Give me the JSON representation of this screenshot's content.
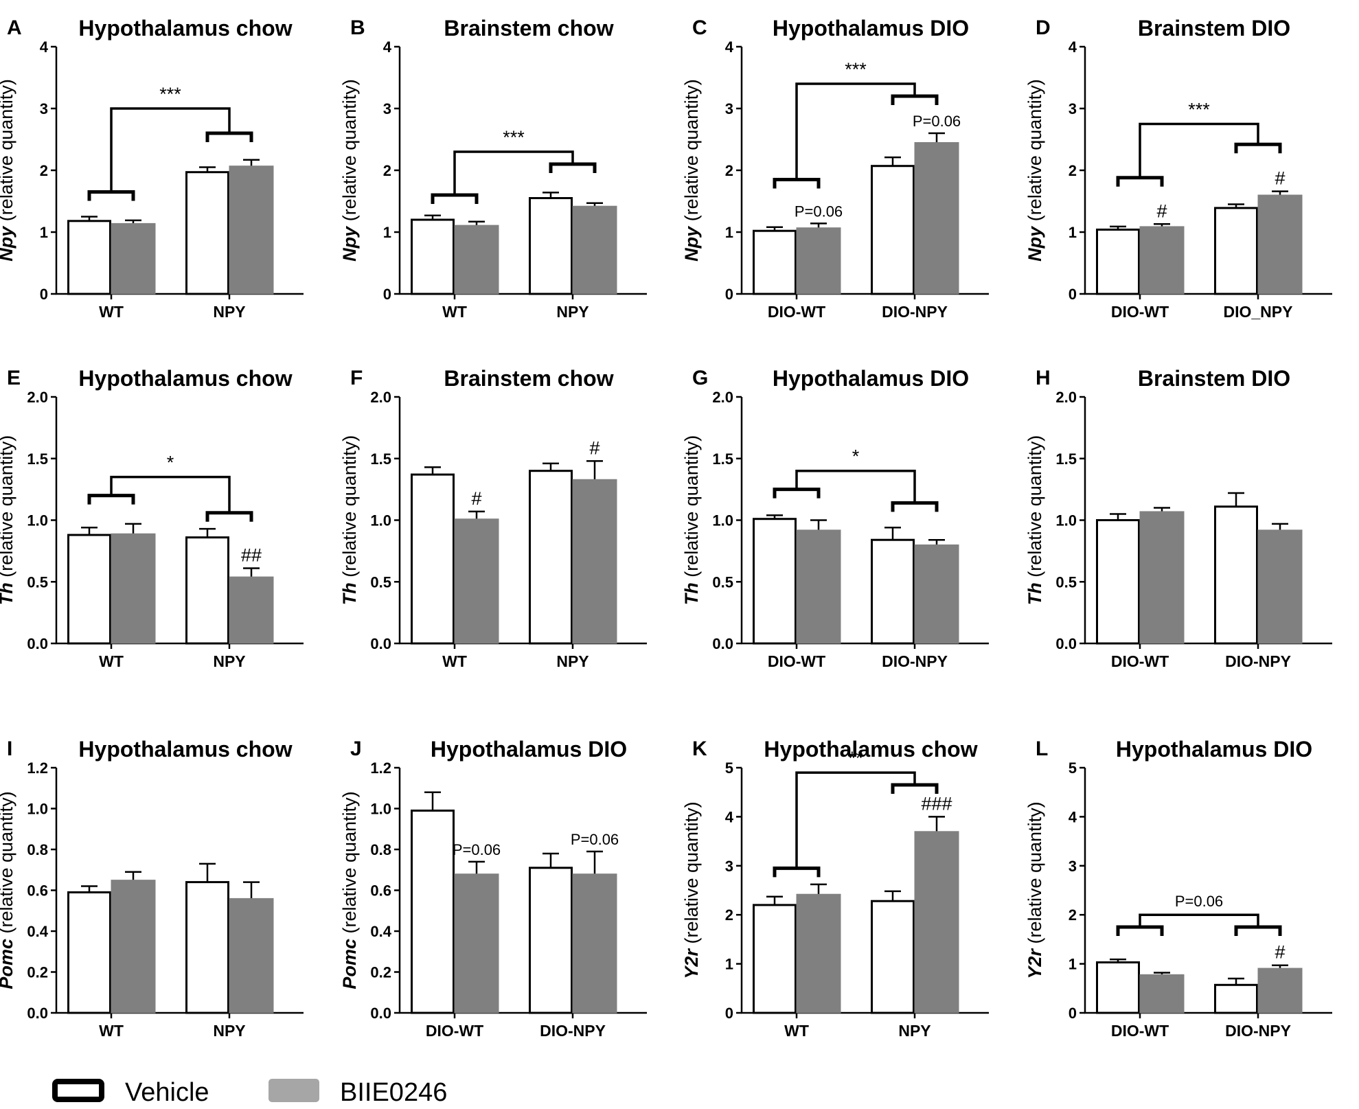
{
  "legend": {
    "vehicle": {
      "label": "Vehicle",
      "color": "#ffffff",
      "stroke": "#000000"
    },
    "drug": {
      "label": "BIIE0246",
      "color": "#808080",
      "stroke": "#808080"
    }
  },
  "chart_data": [
    {
      "type": "bar",
      "panel": "A",
      "title": "Hypothalamus chow",
      "ylabel_gene": "Npy",
      "ylabel_rest": " (relative quantity)",
      "categories": [
        "WT",
        "NPY"
      ],
      "ylim": [
        0,
        4
      ],
      "yticks": [
        "0",
        "1",
        "2",
        "3",
        "4"
      ],
      "ytick_values": [
        0,
        1,
        2,
        3,
        4
      ],
      "series": [
        {
          "name": "Vehicle",
          "values": [
            1.18,
            1.97
          ],
          "errors": [
            0.07,
            0.08
          ]
        },
        {
          "name": "BIIE0246",
          "values": [
            1.14,
            2.07
          ],
          "errors": [
            0.05,
            0.1
          ]
        }
      ],
      "annotations": {
        "bar_marks": [],
        "groups": [
          [
            0,
            0,
            1.65
          ],
          [
            1,
            1,
            2.6
          ]
        ],
        "main": [
          [
            0,
            1,
            3.0,
            "***"
          ]
        ]
      }
    },
    {
      "type": "bar",
      "panel": "B",
      "title": "Brainstem chow",
      "ylabel_gene": "Npy",
      "ylabel_rest": " (relative quantity)",
      "categories": [
        "WT",
        "NPY"
      ],
      "ylim": [
        0,
        4
      ],
      "yticks": [
        "0",
        "1",
        "2",
        "3",
        "4"
      ],
      "ytick_values": [
        0,
        1,
        2,
        3,
        4
      ],
      "series": [
        {
          "name": "Vehicle",
          "values": [
            1.2,
            1.55
          ],
          "errors": [
            0.07,
            0.09
          ]
        },
        {
          "name": "BIIE0246",
          "values": [
            1.11,
            1.42
          ],
          "errors": [
            0.06,
            0.05
          ]
        }
      ],
      "annotations": {
        "bar_marks": [],
        "groups": [
          [
            0,
            0,
            1.6
          ],
          [
            1,
            1,
            2.1
          ]
        ],
        "main": [
          [
            0,
            1,
            2.3,
            "***"
          ]
        ]
      }
    },
    {
      "type": "bar",
      "panel": "C",
      "title": "Hypothalamus DIO",
      "ylabel_gene": "Npy",
      "ylabel_rest": " (relative quantity)",
      "categories": [
        "DIO-WT",
        "DIO-NPY"
      ],
      "ylim": [
        0,
        4
      ],
      "yticks": [
        "0",
        "1",
        "2",
        "3",
        "4"
      ],
      "ytick_values": [
        0,
        1,
        2,
        3,
        4
      ],
      "series": [
        {
          "name": "Vehicle",
          "values": [
            1.02,
            2.07
          ],
          "errors": [
            0.06,
            0.14
          ]
        },
        {
          "name": "BIIE0246",
          "values": [
            1.07,
            2.45
          ],
          "errors": [
            0.07,
            0.15
          ]
        }
      ],
      "annotations": {
        "bar_marks": [
          [
            0,
            1,
            "P=0.06"
          ],
          [
            1,
            1,
            "P=0.06"
          ]
        ],
        "groups": [
          [
            0,
            0,
            1.85
          ],
          [
            1,
            1,
            3.2
          ]
        ],
        "main": [
          [
            0,
            1,
            3.4,
            "***"
          ]
        ]
      }
    },
    {
      "type": "bar",
      "panel": "D",
      "title": "Brainstem DIO",
      "ylabel_gene": "Npy",
      "ylabel_rest": " (relative quantity)",
      "categories": [
        "DIO-WT",
        "DIO_NPY"
      ],
      "ylim": [
        0,
        4
      ],
      "yticks": [
        "0",
        "1",
        "2",
        "3",
        "4"
      ],
      "ytick_values": [
        0,
        1,
        2,
        3,
        4
      ],
      "series": [
        {
          "name": "Vehicle",
          "values": [
            1.04,
            1.39
          ],
          "errors": [
            0.05,
            0.06
          ]
        },
        {
          "name": "BIIE0246",
          "values": [
            1.09,
            1.6
          ],
          "errors": [
            0.04,
            0.06
          ]
        }
      ],
      "annotations": {
        "bar_marks": [
          [
            0,
            1,
            "#"
          ],
          [
            1,
            1,
            "#"
          ]
        ],
        "groups": [
          [
            0,
            0,
            1.88
          ],
          [
            1,
            1,
            2.42
          ]
        ],
        "main": [
          [
            0,
            1,
            2.75,
            "***"
          ]
        ]
      }
    },
    {
      "type": "bar",
      "panel": "E",
      "title": "Hypothalamus chow",
      "ylabel_gene": "Th",
      "ylabel_rest": " (relative quantity)",
      "categories": [
        "WT",
        "NPY"
      ],
      "ylim": [
        0,
        2
      ],
      "yticks": [
        "0.0",
        "0.5",
        "1.0",
        "1.5",
        "2.0"
      ],
      "ytick_values": [
        0,
        0.5,
        1,
        1.5,
        2
      ],
      "series": [
        {
          "name": "Vehicle",
          "values": [
            0.88,
            0.86
          ],
          "errors": [
            0.06,
            0.07
          ]
        },
        {
          "name": "BIIE0246",
          "values": [
            0.89,
            0.54
          ],
          "errors": [
            0.08,
            0.07
          ]
        }
      ],
      "annotations": {
        "bar_marks": [
          [
            1,
            1,
            "##"
          ]
        ],
        "groups": [
          [
            0,
            0,
            1.2
          ],
          [
            1,
            1,
            1.06
          ]
        ],
        "main": [
          [
            0,
            1,
            1.35,
            "*"
          ]
        ]
      }
    },
    {
      "type": "bar",
      "panel": "F",
      "title": "Brainstem chow",
      "ylabel_gene": "Th",
      "ylabel_rest": " (relative quantity)",
      "categories": [
        "WT",
        "NPY"
      ],
      "ylim": [
        0,
        2
      ],
      "yticks": [
        "0.0",
        "0.5",
        "1.0",
        "1.5",
        "2.0"
      ],
      "ytick_values": [
        0,
        0.5,
        1,
        1.5,
        2
      ],
      "series": [
        {
          "name": "Vehicle",
          "values": [
            1.37,
            1.4
          ],
          "errors": [
            0.06,
            0.06
          ]
        },
        {
          "name": "BIIE0246",
          "values": [
            1.01,
            1.33
          ],
          "errors": [
            0.06,
            0.15
          ]
        }
      ],
      "annotations": {
        "bar_marks": [
          [
            0,
            1,
            "#"
          ],
          [
            1,
            1,
            "#"
          ]
        ],
        "groups": [],
        "main": []
      }
    },
    {
      "type": "bar",
      "panel": "G",
      "title": "Hypothalamus DIO",
      "ylabel_gene": "Th",
      "ylabel_rest": " (relative quantity)",
      "categories": [
        "DIO-WT",
        "DIO-NPY"
      ],
      "ylim": [
        0,
        2
      ],
      "yticks": [
        "0.0",
        "0.5",
        "1.0",
        "1.5",
        "2.0"
      ],
      "ytick_values": [
        0,
        0.5,
        1,
        1.5,
        2
      ],
      "series": [
        {
          "name": "Vehicle",
          "values": [
            1.01,
            0.84
          ],
          "errors": [
            0.03,
            0.1
          ]
        },
        {
          "name": "BIIE0246",
          "values": [
            0.92,
            0.8
          ],
          "errors": [
            0.08,
            0.04
          ]
        }
      ],
      "annotations": {
        "bar_marks": [],
        "groups": [
          [
            0,
            0,
            1.25
          ],
          [
            1,
            1,
            1.14
          ]
        ],
        "main": [
          [
            0,
            1,
            1.4,
            "*"
          ]
        ]
      }
    },
    {
      "type": "bar",
      "panel": "H",
      "title": "Brainstem DIO",
      "ylabel_gene": "Th",
      "ylabel_rest": " (relative quantity)",
      "categories": [
        "DIO-WT",
        "DIO-NPY"
      ],
      "ylim": [
        0,
        2
      ],
      "yticks": [
        "0.0",
        "0.5",
        "1.0",
        "1.5",
        "2.0"
      ],
      "ytick_values": [
        0,
        0.5,
        1,
        1.5,
        2
      ],
      "series": [
        {
          "name": "Vehicle",
          "values": [
            1.0,
            1.11
          ],
          "errors": [
            0.05,
            0.11
          ]
        },
        {
          "name": "BIIE0246",
          "values": [
            1.07,
            0.92
          ],
          "errors": [
            0.03,
            0.05
          ]
        }
      ],
      "annotations": {
        "bar_marks": [],
        "groups": [],
        "main": []
      }
    },
    {
      "type": "bar",
      "panel": "I",
      "title": "Hypothalamus chow",
      "ylabel_gene": "Pomc",
      "ylabel_rest": " (relative quantity)",
      "categories": [
        "WT",
        "NPY"
      ],
      "ylim": [
        0,
        1.2
      ],
      "yticks": [
        "0.0",
        "0.2",
        "0.4",
        "0.6",
        "0.8",
        "1.0",
        "1.2"
      ],
      "ytick_values": [
        0,
        0.2,
        0.4,
        0.6,
        0.8,
        1.0,
        1.2
      ],
      "series": [
        {
          "name": "Vehicle",
          "values": [
            0.59,
            0.64
          ],
          "errors": [
            0.03,
            0.09
          ]
        },
        {
          "name": "BIIE0246",
          "values": [
            0.65,
            0.56
          ],
          "errors": [
            0.04,
            0.08
          ]
        }
      ],
      "annotations": {
        "bar_marks": [],
        "groups": [],
        "main": []
      }
    },
    {
      "type": "bar",
      "panel": "J",
      "title": "Hypothalamus DIO",
      "ylabel_gene": "Pomc",
      "ylabel_rest": " (relative quantity)",
      "categories": [
        "DIO-WT",
        "DIO-NPY"
      ],
      "ylim": [
        0,
        1.2
      ],
      "yticks": [
        "0.0",
        "0.2",
        "0.4",
        "0.6",
        "0.8",
        "1.0",
        "1.2"
      ],
      "ytick_values": [
        0,
        0.2,
        0.4,
        0.6,
        0.8,
        1.0,
        1.2
      ],
      "series": [
        {
          "name": "Vehicle",
          "values": [
            0.99,
            0.71
          ],
          "errors": [
            0.09,
            0.07
          ]
        },
        {
          "name": "BIIE0246",
          "values": [
            0.68,
            0.68
          ],
          "errors": [
            0.06,
            0.11
          ]
        }
      ],
      "annotations": {
        "bar_marks": [
          [
            0,
            1,
            "P=0.06"
          ],
          [
            1,
            1,
            "P=0.06"
          ]
        ],
        "groups": [],
        "main": []
      }
    },
    {
      "type": "bar",
      "panel": "K",
      "title": "Hypothalamus chow",
      "ylabel_gene": "Y2r",
      "ylabel_rest": " (relative quantity)",
      "categories": [
        "WT",
        "NPY"
      ],
      "ylim": [
        0,
        5
      ],
      "yticks": [
        "0",
        "1",
        "2",
        "3",
        "4",
        "5"
      ],
      "ytick_values": [
        0,
        1,
        2,
        3,
        4,
        5
      ],
      "series": [
        {
          "name": "Vehicle",
          "values": [
            2.2,
            2.28
          ],
          "errors": [
            0.17,
            0.2
          ]
        },
        {
          "name": "BIIE0246",
          "values": [
            2.42,
            3.7
          ],
          "errors": [
            0.2,
            0.3
          ]
        }
      ],
      "annotations": {
        "bar_marks": [
          [
            1,
            1,
            "###"
          ]
        ],
        "groups": [
          [
            0,
            0,
            2.95
          ],
          [
            1,
            1,
            4.65
          ]
        ],
        "main": [
          [
            0,
            1,
            4.9,
            "**"
          ]
        ]
      }
    },
    {
      "type": "bar",
      "panel": "L",
      "title": "Hypothalamus DIO",
      "ylabel_gene": "Y2r",
      "ylabel_rest": " (relative quantity)",
      "categories": [
        "DIO-WT",
        "DIO-NPY"
      ],
      "ylim": [
        0,
        5
      ],
      "yticks": [
        "0",
        "1",
        "2",
        "3",
        "4",
        "5"
      ],
      "ytick_values": [
        0,
        1,
        2,
        3,
        4,
        5
      ],
      "series": [
        {
          "name": "Vehicle",
          "values": [
            1.03,
            0.57
          ],
          "errors": [
            0.06,
            0.13
          ]
        },
        {
          "name": "BIIE0246",
          "values": [
            0.78,
            0.91
          ],
          "errors": [
            0.04,
            0.06
          ]
        }
      ],
      "annotations": {
        "bar_marks": [
          [
            1,
            1,
            "#"
          ]
        ],
        "groups": [
          [
            0,
            0,
            1.75
          ],
          [
            1,
            1,
            1.75
          ]
        ],
        "main": [
          [
            0,
            1,
            2.0,
            "P=0.06"
          ]
        ]
      }
    }
  ]
}
